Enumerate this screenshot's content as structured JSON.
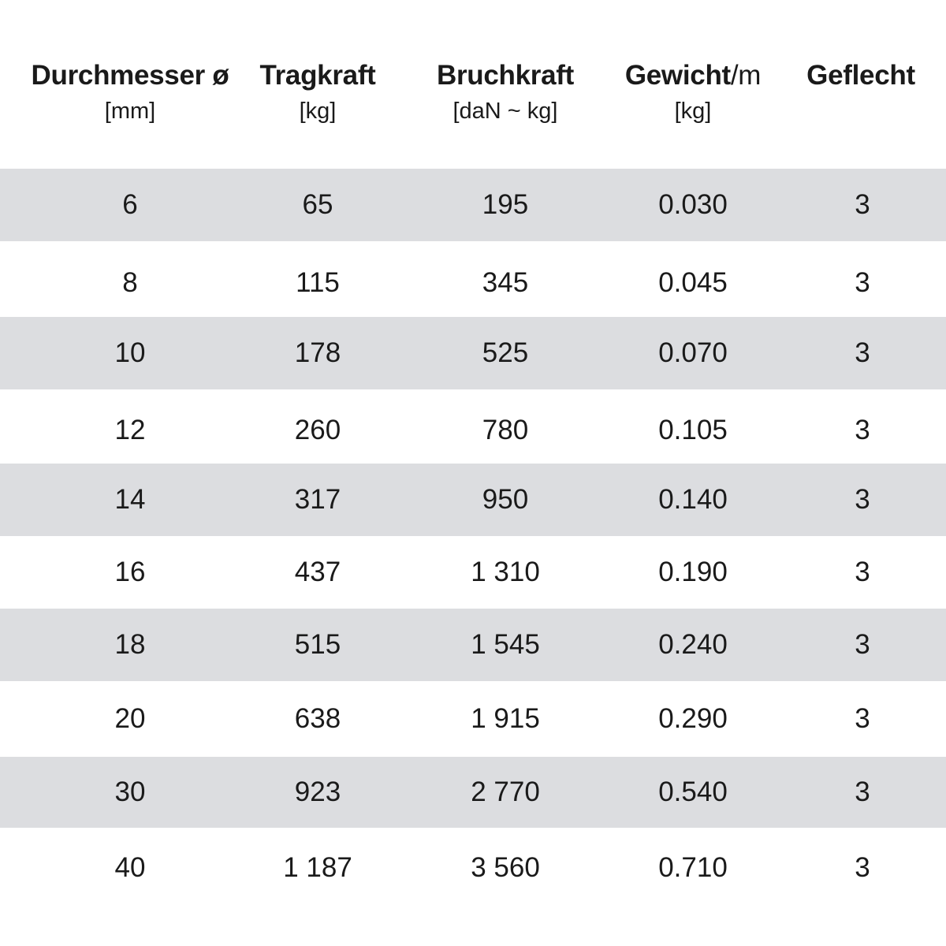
{
  "table": {
    "headers": [
      {
        "title": "Durchmesser ø",
        "title_suffix": "",
        "unit": "[mm]"
      },
      {
        "title": "Tragkraft",
        "title_suffix": "",
        "unit": "[kg]"
      },
      {
        "title": "Bruchkraft",
        "title_suffix": "",
        "unit": "[daN ~ kg]"
      },
      {
        "title": "Gewicht",
        "title_suffix": "/m",
        "unit": "[kg]"
      },
      {
        "title": "Geflecht",
        "title_suffix": "",
        "unit": ""
      }
    ],
    "rows": [
      [
        "6",
        "65",
        "195",
        "0.030",
        "3"
      ],
      [
        "8",
        "115",
        "345",
        "0.045",
        "3"
      ],
      [
        "10",
        "178",
        "525",
        "0.070",
        "3"
      ],
      [
        "12",
        "260",
        "780",
        "0.105",
        "3"
      ],
      [
        "14",
        "317",
        "950",
        "0.140",
        "3"
      ],
      [
        "16",
        "437",
        "1 310",
        "0.190",
        "3"
      ],
      [
        "18",
        "515",
        "1 545",
        "0.240",
        "3"
      ],
      [
        "20",
        "638",
        "1 915",
        "0.290",
        "3"
      ],
      [
        "30",
        "923",
        "2 770",
        "0.540",
        "3"
      ],
      [
        "40",
        "1 187",
        "3 560",
        "0.710",
        "3"
      ]
    ],
    "row_shade_color": "#dcdde0",
    "text_color": "#1a1a1a"
  }
}
